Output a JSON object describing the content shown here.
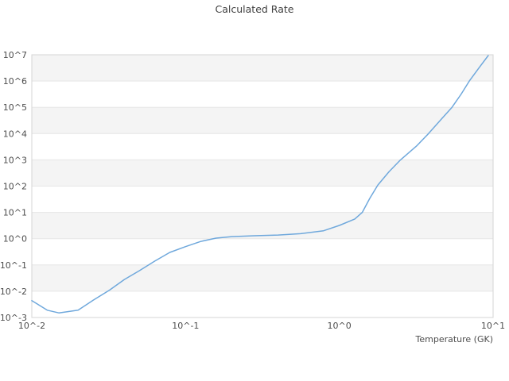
{
  "title": "Calculated Rate",
  "chart_data": {
    "type": "line",
    "title": "Calculated Rate",
    "xlabel": "Temperature (GK)",
    "ylabel": "",
    "x_scale": "log",
    "y_scale": "log",
    "xlim": [
      0.01,
      10
    ],
    "ylim": [
      0.001,
      10000000
    ],
    "xlog_range": [
      -2,
      1
    ],
    "ylog_range": [
      -3,
      7
    ],
    "grid": "horizontal-only",
    "alternating_bands": true,
    "legend_position": "none",
    "x_ticks": [
      {
        "value": 0.01,
        "label": "10^-2"
      },
      {
        "value": 0.1,
        "label": "10^-1"
      },
      {
        "value": 1,
        "label": "10^0"
      },
      {
        "value": 10,
        "label": "10^1"
      }
    ],
    "y_ticks": [
      {
        "value": 0.001,
        "label": "10^-3"
      },
      {
        "value": 0.01,
        "label": "10^-2"
      },
      {
        "value": 0.1,
        "label": "10^-1"
      },
      {
        "value": 1,
        "label": "10^0"
      },
      {
        "value": 10,
        "label": "10^1"
      },
      {
        "value": 100,
        "label": "10^2"
      },
      {
        "value": 1000,
        "label": "10^3"
      },
      {
        "value": 10000,
        "label": "10^4"
      },
      {
        "value": 100000,
        "label": "10^5"
      },
      {
        "value": 1000000,
        "label": "10^6"
      },
      {
        "value": 10000000,
        "label": "10^7"
      }
    ],
    "series": [
      {
        "name": "Calculated Rate",
        "color": "#6fa8dc",
        "x": [
          0.01,
          0.0126,
          0.015,
          0.02,
          0.025,
          0.032,
          0.04,
          0.05,
          0.063,
          0.079,
          0.1,
          0.126,
          0.158,
          0.2,
          0.28,
          0.4,
          0.56,
          0.79,
          1.0,
          1.26,
          1.41,
          1.58,
          1.78,
          2.1,
          2.5,
          3.2,
          3.8,
          4.6,
          5.4,
          6.2,
          7.0,
          8.1,
          9.3
        ],
        "y": [
          0.0044,
          0.0019,
          0.0015,
          0.0019,
          0.0045,
          0.011,
          0.028,
          0.06,
          0.14,
          0.3,
          0.5,
          0.79,
          1.05,
          1.2,
          1.29,
          1.38,
          1.55,
          2.0,
          3.2,
          5.6,
          10,
          35,
          110,
          350,
          1000,
          3500,
          10000,
          35000,
          100000,
          320000,
          1000000,
          3200000,
          9300000
        ]
      }
    ]
  },
  "colors": {
    "background": "#ffffff",
    "band": "#f4f4f4",
    "grid": "#e6e6e6",
    "border": "#d5d5d5",
    "line": "#6fa8dc",
    "title_text": "#404040",
    "tick_text": "#4d4d4d"
  }
}
